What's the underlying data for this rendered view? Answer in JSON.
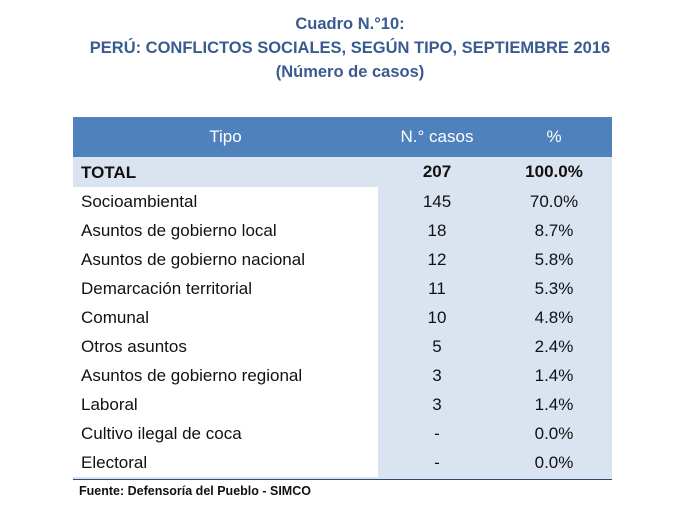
{
  "title": {
    "line1": "Cuadro N.°10:",
    "line2": "PERÚ: CONFLICTOS SOCIALES, SEGÚN TIPO, SEPTIEMBRE 2016",
    "line3": "(Número de casos)"
  },
  "table": {
    "headers": [
      "Tipo",
      "N.° casos",
      "%"
    ],
    "total": {
      "tipo": "TOTAL",
      "casos": "207",
      "pct": "100.0%"
    },
    "rows": [
      {
        "tipo": "Socioambiental",
        "casos": "145",
        "pct": "70.0%"
      },
      {
        "tipo": "Asuntos de gobierno local",
        "casos": "18",
        "pct": "8.7%"
      },
      {
        "tipo": "Asuntos de gobierno nacional",
        "casos": "12",
        "pct": "5.8%"
      },
      {
        "tipo": "Demarcación territorial",
        "casos": "11",
        "pct": "5.3%"
      },
      {
        "tipo": "Comunal",
        "casos": "10",
        "pct": "4.8%"
      },
      {
        "tipo": "Otros asuntos",
        "casos": "5",
        "pct": "2.4%"
      },
      {
        "tipo": "Asuntos de gobierno regional",
        "casos": "3",
        "pct": "1.4%"
      },
      {
        "tipo": "Laboral",
        "casos": "3",
        "pct": "1.4%"
      },
      {
        "tipo": "Cultivo ilegal de coca",
        "casos": "-",
        "pct": "0.0%"
      },
      {
        "tipo": "Electoral",
        "casos": "-",
        "pct": "0.0%"
      }
    ]
  },
  "footer": {
    "source": "Fuente: Defensoría del Pueblo - SIMCO"
  },
  "colors": {
    "title": "#3a5b8f",
    "header_bg": "#4f81bd",
    "numeric_bg": "#dae3f0"
  }
}
